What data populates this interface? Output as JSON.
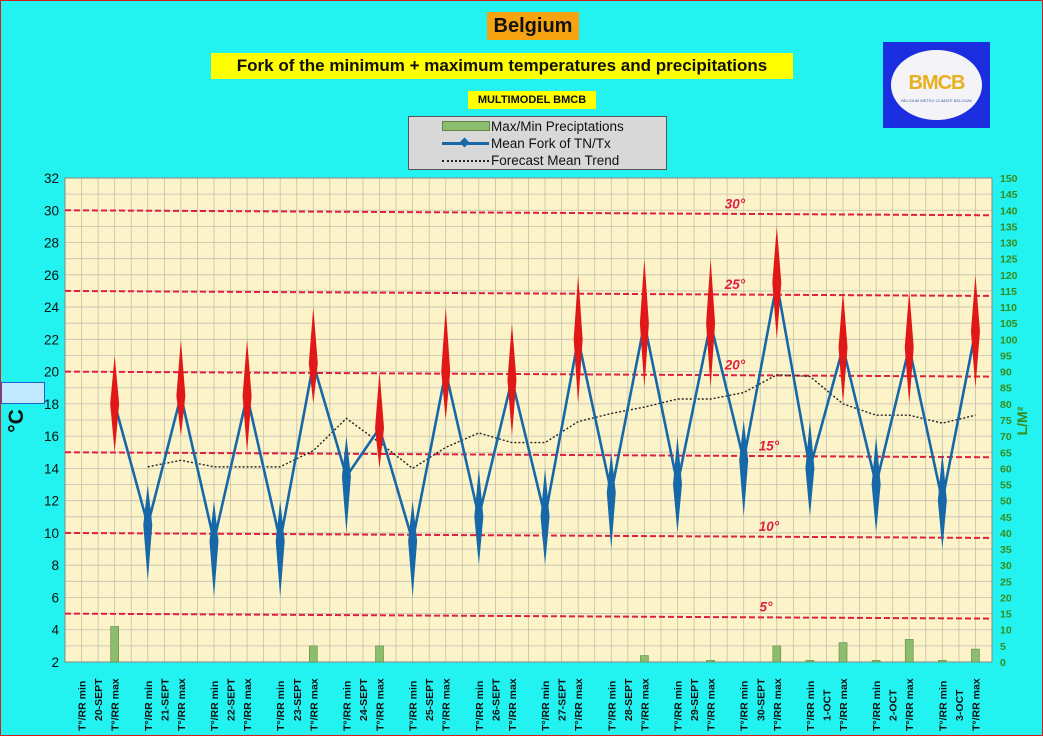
{
  "header": {
    "country": "Belgium",
    "subtitle": "Fork of the minimum + maximum temperatures and precipitations",
    "model": "MULTIMODEL BMCB"
  },
  "logo": {
    "text": "BMCB",
    "sub": "BELGIUM METEO CLIMATE BELGIUM"
  },
  "legend": {
    "items": [
      {
        "label": "Max/Min Preciptations"
      },
      {
        "label": "Mean Fork of TN/Tx"
      },
      {
        "label": "Forecast Mean Trend"
      }
    ]
  },
  "colors": {
    "background": "#22f3f0",
    "plot": "#fcf3c8",
    "mean_line": "#1668a8",
    "max_diamond": "#e01818",
    "min_diamond": "#1668a8",
    "ref_line": "#e02040",
    "precip": "#8cbc6e"
  },
  "chart_data": {
    "type": "line",
    "title": "Fork of the minimum + maximum temperatures and precipitations",
    "ylabel": "°C",
    "y2label": "L/M²",
    "ylim": [
      2,
      32
    ],
    "y_ticks": [
      2,
      4,
      6,
      8,
      10,
      12,
      14,
      16,
      18,
      20,
      22,
      24,
      26,
      28,
      30,
      32
    ],
    "y2lim": [
      0,
      150
    ],
    "y2_ticks": [
      0,
      5,
      10,
      15,
      20,
      25,
      30,
      35,
      40,
      45,
      50,
      55,
      60,
      65,
      70,
      75,
      80,
      85,
      90,
      95,
      100,
      105,
      110,
      115,
      120,
      125,
      130,
      135,
      140,
      145,
      150
    ],
    "grid": true,
    "reference_lines": [
      {
        "label": "30°",
        "value": 30
      },
      {
        "label": "25°",
        "value": 25
      },
      {
        "label": "20°",
        "value": 20
      },
      {
        "label": "15°",
        "value": 15
      },
      {
        "label": "10°",
        "value": 10
      },
      {
        "label": "5°",
        "value": 5
      }
    ],
    "categories": [
      "T°/RR min",
      "T°/RR max",
      "T°/RR min",
      "T°/RR max",
      "T°/RR min",
      "T°/RR max",
      "T°/RR min",
      "T°/RR max",
      "T°/RR min",
      "T°/RR max",
      "T°/RR min",
      "T°/RR max",
      "T°/RR min",
      "T°/RR max",
      "T°/RR min",
      "T°/RR max",
      "T°/RR min",
      "T°/RR max",
      "T°/RR min",
      "T°/RR max",
      "T°/RR min",
      "T°/RR max",
      "T°/RR min",
      "T°/RR max",
      "T°/RR min",
      "T°/RR max",
      "T°/RR min",
      "T°/RR max"
    ],
    "dates": [
      "20-SEPT",
      "21-SEPT",
      "22-SEPT",
      "23-SEPT",
      "24-SEPT",
      "25-SEPT",
      "26-SEPT",
      "27-SEPT",
      "28-SEPT",
      "29-SEPT",
      "30-SEPT",
      "1-OCT",
      "2-OCT",
      "3-OCT"
    ],
    "mean_fork": [
      null,
      18,
      10.5,
      18.5,
      9.5,
      18.5,
      9.5,
      20.5,
      13.5,
      16.5,
      9.5,
      20,
      11,
      19.5,
      11,
      22,
      12.5,
      23,
      13,
      23,
      14.5,
      25.5,
      14,
      21.5,
      13,
      21.5,
      12,
      22.5
    ],
    "fork_max": [
      null,
      21,
      13,
      22,
      12,
      22,
      12,
      24,
      16,
      20,
      12,
      24,
      14,
      23,
      14,
      26,
      15,
      27,
      16,
      27,
      17,
      29,
      17,
      25,
      16,
      25,
      15,
      26
    ],
    "fork_min": [
      null,
      15,
      7,
      16,
      6,
      15,
      6,
      18,
      10,
      14,
      6,
      17,
      8,
      16,
      8,
      18,
      9,
      19,
      10,
      19,
      11,
      22,
      11,
      18,
      10,
      18,
      9,
      19
    ],
    "trend": [
      null,
      null,
      14.1,
      14.5,
      14.1,
      14.1,
      14.1,
      15.1,
      17.1,
      15.6,
      14,
      15.3,
      16.2,
      15.6,
      15.6,
      16.9,
      17.4,
      17.8,
      18.3,
      18.3,
      18.7,
      19.8,
      19.7,
      18,
      17.3,
      17.3,
      16.8,
      17.3
    ],
    "precip": [
      0,
      11,
      0,
      0,
      0,
      0,
      0,
      5,
      0,
      5,
      0,
      0,
      0,
      0,
      0,
      0,
      0,
      2,
      0,
      0.5,
      0,
      5,
      0.5,
      6,
      0.5,
      7,
      0.5,
      4
    ]
  }
}
